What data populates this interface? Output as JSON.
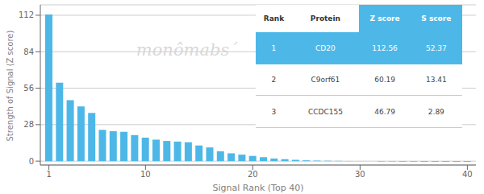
{
  "chart_data": {
    "type": "bar",
    "xlabel": "Signal Rank (Top 40)",
    "ylabel": "Strength of Signal (Z score)",
    "x": [
      1,
      2,
      3,
      4,
      5,
      6,
      7,
      8,
      9,
      10,
      11,
      12,
      13,
      14,
      15,
      16,
      17,
      18,
      19,
      20,
      21,
      22,
      23,
      24,
      25,
      26,
      27,
      28,
      29,
      30,
      31,
      32,
      33,
      34,
      35,
      36,
      37,
      38,
      39,
      40
    ],
    "values": [
      112.56,
      60.19,
      46.79,
      42.0,
      37.0,
      24.0,
      23.0,
      22.5,
      20.0,
      18.0,
      16.5,
      15.5,
      15.0,
      14.5,
      12.0,
      10.5,
      7.5,
      6.0,
      5.0,
      4.0,
      3.0,
      2.0,
      1.5,
      1.0,
      0.6,
      0.4,
      0.3,
      0.2,
      0.1,
      0.05,
      0.0,
      -0.3,
      -0.3,
      -0.4,
      -0.4,
      -0.5,
      -0.5,
      -0.5,
      -0.6,
      -0.6
    ],
    "color": "#4db8e8",
    "xlim": [
      0.2,
      40.8
    ],
    "xticks": [
      1,
      10,
      20,
      30,
      40
    ],
    "ylim": [
      -3,
      120
    ],
    "yticks": [
      0,
      28,
      56,
      84,
      112
    ],
    "grid": true,
    "annotations": [
      {
        "text": "monômabs´",
        "color": "#d8d8d8"
      }
    ],
    "table": {
      "columns": [
        "Rank",
        "Protein",
        "Z score",
        "S score"
      ],
      "rows": [
        [
          "1",
          "CD20",
          "112.56",
          "52.37"
        ],
        [
          "2",
          "C9orf61",
          "60.19",
          "13.41"
        ],
        [
          "3",
          "CCDC155",
          "46.79",
          "2.89"
        ]
      ],
      "highlight_rows": [
        0
      ],
      "highlight_columns": [
        2,
        3
      ],
      "color": "#4db8e8"
    }
  }
}
